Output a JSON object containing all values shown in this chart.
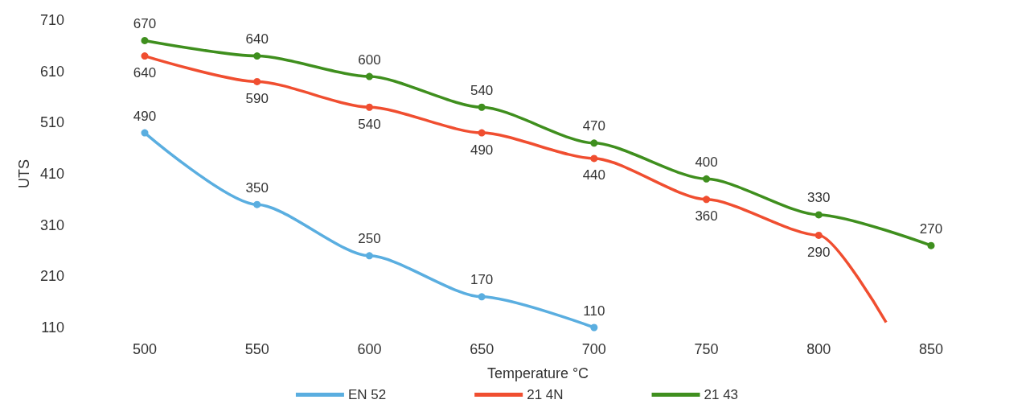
{
  "chart_data": {
    "type": "line",
    "xlabel": "Temperature °C",
    "ylabel": "UTS",
    "xlim": [
      500,
      850
    ],
    "xticks": [
      500,
      550,
      600,
      650,
      700,
      750,
      800,
      850
    ],
    "ylim": [
      110,
      710
    ],
    "yticks": [
      110,
      210,
      310,
      410,
      510,
      610,
      710
    ],
    "grid": false,
    "legend": "bottom",
    "marker": "circle",
    "series": [
      {
        "name": "EN 52",
        "color": "#5aaee0",
        "x": [
          500,
          550,
          600,
          650,
          700
        ],
        "values": [
          490,
          350,
          250,
          170,
          110
        ],
        "value_labels": [
          "490",
          "350",
          "250",
          "170",
          "110"
        ]
      },
      {
        "name": "21 4N",
        "color": "#f04e30",
        "x": [
          500,
          550,
          600,
          650,
          700,
          750,
          800,
          830
        ],
        "values": [
          640,
          590,
          540,
          490,
          440,
          360,
          290,
          120
        ],
        "value_labels": [
          "640",
          "590",
          "540",
          "490",
          "440",
          "360",
          "290",
          null
        ]
      },
      {
        "name": "21 43",
        "color": "#3f8f1e",
        "x": [
          500,
          550,
          600,
          650,
          700,
          750,
          800,
          850
        ],
        "values": [
          670,
          640,
          600,
          540,
          470,
          400,
          330,
          270
        ],
        "value_labels": [
          "670",
          "640",
          "600",
          "540",
          "470",
          "400",
          "330",
          "270"
        ]
      }
    ]
  }
}
